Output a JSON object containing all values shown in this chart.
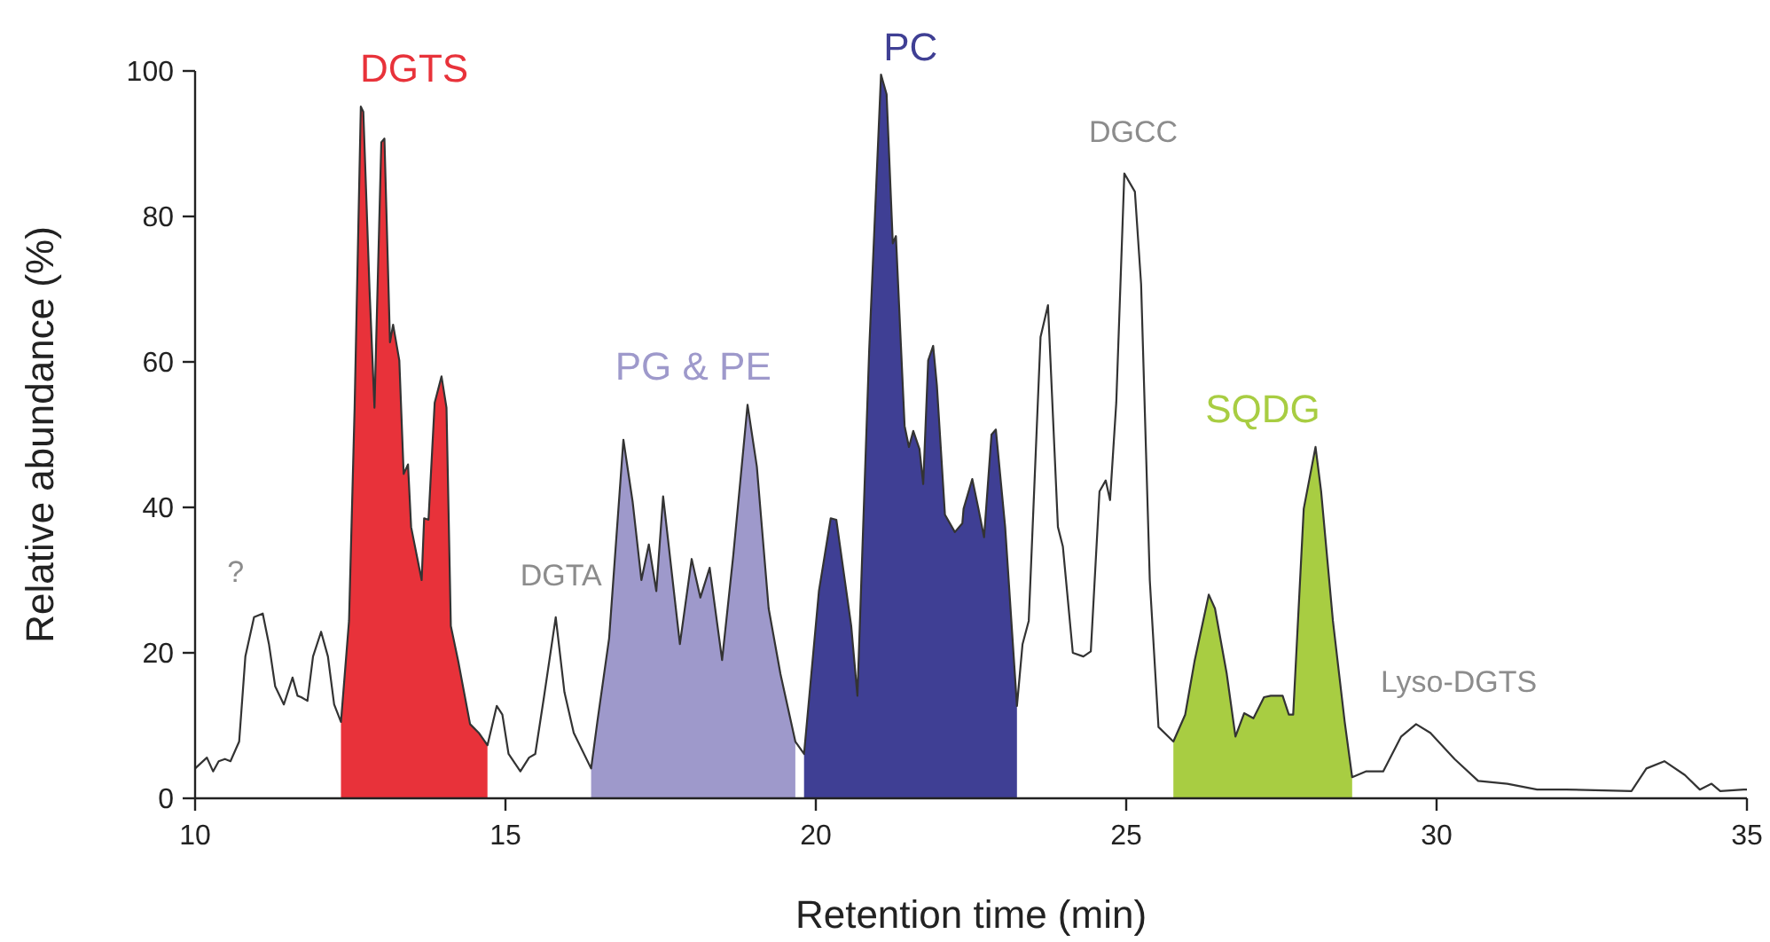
{
  "chart_data": {
    "type": "line",
    "xlabel": "Retention time (min)",
    "ylabel": "Relative abundance (%)",
    "xlim": [
      10,
      35
    ],
    "ylim": [
      0,
      100
    ],
    "xticks": [
      10,
      15,
      20,
      25,
      30,
      35
    ],
    "yticks": [
      0,
      20,
      40,
      60,
      80,
      100
    ],
    "grid": false,
    "legend": false,
    "marker": "none",
    "line_style": "solid",
    "series": [
      {
        "type": "area",
        "name": "DGTS",
        "color": "#e8323a",
        "x": [
          12.35,
          12.48,
          12.57,
          12.67,
          12.71,
          12.81,
          12.89,
          13.0,
          13.05,
          13.14,
          13.19,
          13.29,
          13.36,
          13.43,
          13.48,
          13.65,
          13.69,
          13.76,
          13.86,
          13.97,
          14.05,
          14.12,
          14.24,
          14.43,
          14.57,
          14.71
        ],
        "values": [
          10.5,
          24.4,
          53.7,
          95.1,
          94.4,
          70,
          53.7,
          90.2,
          90.7,
          62.7,
          65.1,
          60.2,
          44.6,
          45.9,
          37.3,
          30.0,
          38.5,
          38.3,
          54.4,
          58.0,
          53.7,
          23.7,
          18.8,
          10.2,
          9.0,
          7.3
        ]
      },
      {
        "type": "area",
        "name": "PG & PE",
        "color": "#9e99cb",
        "x": [
          16.38,
          16.48,
          16.67,
          16.9,
          17.05,
          17.19,
          17.31,
          17.43,
          17.54,
          17.81,
          18.0,
          18.14,
          18.29,
          18.49,
          18.67,
          18.9,
          19.05,
          19.24,
          19.43,
          19.67
        ],
        "values": [
          4.1,
          10.5,
          22.0,
          49.3,
          40.7,
          30.0,
          34.9,
          28.5,
          41.5,
          21.2,
          32.9,
          27.6,
          31.7,
          19.0,
          33.4,
          54.1,
          45.6,
          26.1,
          17.1,
          7.8
        ]
      },
      {
        "type": "area",
        "name": "PC",
        "color": "#3f3f94",
        "x": [
          19.81,
          20.05,
          20.24,
          20.33,
          20.57,
          20.67,
          20.86,
          21.05,
          21.14,
          21.24,
          21.29,
          21.43,
          21.5,
          21.57,
          21.67,
          21.73,
          21.81,
          21.89,
          21.95,
          22.08,
          22.24,
          22.36,
          22.38,
          22.52,
          22.62,
          22.71,
          22.83,
          22.9,
          23.05,
          23.24
        ],
        "values": [
          6.1,
          28.5,
          38.5,
          38.3,
          23.7,
          14.1,
          61.7,
          99.5,
          96.8,
          76.3,
          77.3,
          51.2,
          48.3,
          50.5,
          48.0,
          43.2,
          60.2,
          62.2,
          56.8,
          39.0,
          36.6,
          37.8,
          39.8,
          43.9,
          39.8,
          35.9,
          50.0,
          50.7,
          37.3,
          12.7
        ]
      },
      {
        "type": "area",
        "name": "SQDG",
        "color": "#a8cd42",
        "x": [
          25.76,
          25.95,
          26.1,
          26.33,
          26.43,
          26.62,
          26.76,
          26.9,
          27.05,
          27.22,
          27.33,
          27.52,
          27.62,
          27.69,
          27.86,
          28.05,
          28.14,
          28.33,
          28.52,
          28.64
        ],
        "values": [
          7.8,
          11.5,
          18.8,
          28.0,
          26.1,
          17.1,
          8.5,
          11.7,
          11.0,
          13.9,
          14.1,
          14.1,
          11.5,
          11.5,
          39.8,
          48.3,
          42.2,
          24.4,
          10.5,
          2.9
        ]
      },
      {
        "color": "#333333",
        "x": [
          10.0,
          10.19,
          10.29,
          10.38,
          10.48,
          10.57,
          10.71,
          10.81,
          10.95,
          11.09,
          11.19,
          11.29,
          11.43,
          11.57,
          11.65,
          11.71,
          11.81,
          11.9,
          12.03,
          12.14,
          12.24,
          12.35,
          12.48,
          12.57,
          12.67,
          12.71,
          12.81,
          12.89,
          13.0,
          13.05,
          13.14,
          13.19,
          13.29,
          13.36,
          13.43,
          13.48,
          13.65,
          13.69,
          13.76,
          13.86,
          13.97,
          14.05,
          14.12,
          14.24,
          14.43,
          14.57,
          14.71,
          14.86,
          14.95,
          15.05,
          15.24,
          15.38,
          15.48,
          15.62,
          15.81,
          15.95,
          16.1,
          16.38,
          16.48,
          16.67,
          16.9,
          17.05,
          17.19,
          17.31,
          17.43,
          17.54,
          17.81,
          18.0,
          18.14,
          18.29,
          18.49,
          18.67,
          18.9,
          19.05,
          19.24,
          19.43,
          19.67,
          19.81,
          20.05,
          20.24,
          20.33,
          20.57,
          20.67,
          20.86,
          21.05,
          21.14,
          21.24,
          21.29,
          21.43,
          21.5,
          21.57,
          21.67,
          21.73,
          21.81,
          21.89,
          21.95,
          22.08,
          22.24,
          22.36,
          22.38,
          22.52,
          22.62,
          22.71,
          22.83,
          22.9,
          23.05,
          23.24,
          23.33,
          23.43,
          23.62,
          23.74,
          23.9,
          23.98,
          24.14,
          24.31,
          24.43,
          24.57,
          24.67,
          24.74,
          24.84,
          24.97,
          25.14,
          25.24,
          25.38,
          25.52,
          25.76,
          25.95,
          26.1,
          26.33,
          26.43,
          26.62,
          26.76,
          26.9,
          27.05,
          27.22,
          27.33,
          27.52,
          27.62,
          27.69,
          27.86,
          28.05,
          28.14,
          28.33,
          28.52,
          28.64,
          28.86,
          29.14,
          29.43,
          29.67,
          29.9,
          30.29,
          30.67,
          31.14,
          31.62,
          32.09,
          33.14,
          33.38,
          33.67,
          34.0,
          34.24,
          34.43,
          34.57,
          34.95,
          35.0
        ],
        "values": [
          4.1,
          5.6,
          3.7,
          5.1,
          5.4,
          5.1,
          7.8,
          19.5,
          24.9,
          25.4,
          21.2,
          15.4,
          12.9,
          16.6,
          14.1,
          13.9,
          13.4,
          19.5,
          22.9,
          19.5,
          12.9,
          10.5,
          24.4,
          53.7,
          95.1,
          94.4,
          70,
          53.7,
          90.2,
          90.7,
          62.7,
          65.1,
          60.2,
          44.6,
          45.9,
          37.3,
          30.0,
          38.5,
          38.3,
          54.4,
          58.0,
          53.7,
          23.7,
          18.8,
          10.2,
          9.0,
          7.3,
          12.7,
          11.5,
          6.1,
          3.7,
          5.6,
          6.1,
          13.9,
          24.9,
          14.6,
          9.0,
          4.1,
          10.5,
          22.0,
          49.3,
          40.7,
          30.0,
          34.9,
          28.5,
          41.5,
          21.2,
          32.9,
          27.6,
          31.7,
          19.0,
          33.4,
          54.1,
          45.6,
          26.1,
          17.1,
          7.8,
          6.1,
          28.5,
          38.5,
          38.3,
          23.7,
          14.1,
          61.7,
          99.5,
          96.8,
          76.3,
          77.3,
          51.2,
          48.3,
          50.5,
          48.0,
          43.2,
          60.2,
          62.2,
          56.8,
          39.0,
          36.6,
          37.8,
          39.8,
          43.9,
          39.8,
          35.9,
          50.0,
          50.7,
          37.3,
          12.7,
          21.2,
          24.4,
          63.4,
          67.8,
          37.3,
          34.6,
          20.0,
          19.5,
          20.2,
          42.2,
          43.7,
          41.0,
          54.4,
          85.9,
          83.4,
          70.7,
          30.0,
          9.8,
          7.8,
          11.5,
          18.8,
          28.0,
          26.1,
          17.1,
          8.5,
          11.7,
          11.0,
          13.9,
          14.1,
          14.1,
          11.5,
          11.5,
          39.8,
          48.3,
          42.2,
          24.4,
          10.5,
          2.9,
          3.7,
          3.7,
          8.5,
          10.2,
          9.0,
          5.4,
          2.4,
          2.0,
          1.2,
          1.2,
          1.0,
          4.1,
          5.1,
          3.2,
          1.2,
          2.0,
          1.0,
          1.2,
          1.2
        ]
      }
    ],
    "annotations": [
      {
        "text": "?",
        "x": 11.09,
        "y": 25.4
      },
      {
        "text": "DGTA",
        "x": 15.81,
        "y": 24.9
      },
      {
        "text": "DGCC",
        "x": 24.97,
        "y": 85.9
      },
      {
        "text": "Lyso-DGTS",
        "x": 29.67,
        "y": 10.2
      }
    ]
  }
}
